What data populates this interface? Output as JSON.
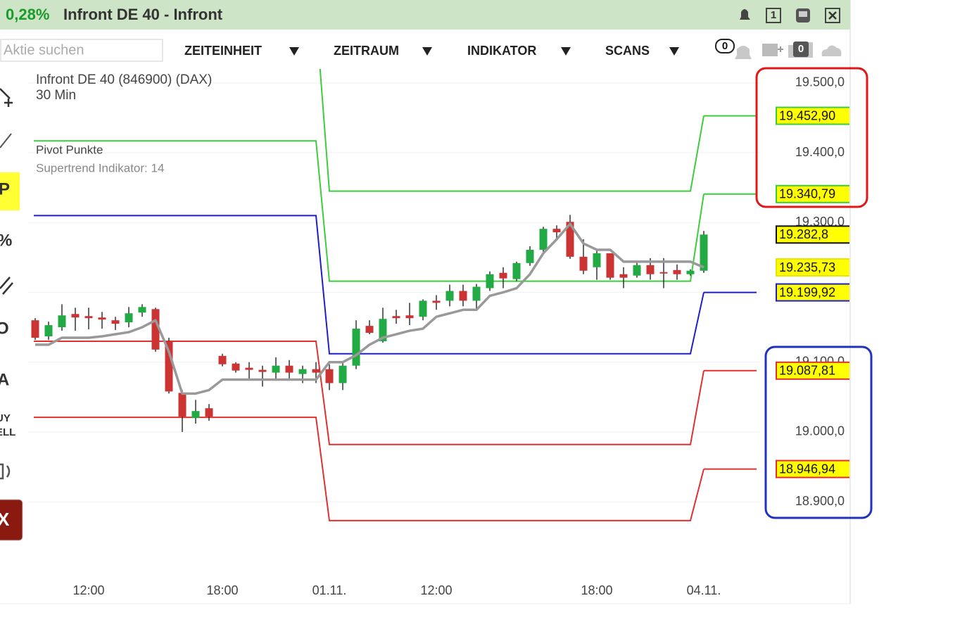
{
  "header": {
    "change": "0,28%",
    "title": "Infront DE 40 - Infront",
    "layout_button": "1"
  },
  "toolbar": {
    "search_placeholder": "Aktie suchen",
    "menus": [
      "ZEITEINHEIT",
      "ZEITRAUM",
      "INDIKATOR",
      "SCANS"
    ],
    "badges": [
      "0",
      "0"
    ]
  },
  "sidebar": {
    "tools": [
      "P",
      "%",
      "O",
      "A",
      "UY",
      "ELL",
      "X"
    ]
  },
  "chart_data": {
    "type": "candlestick",
    "title": "Infront DE 40 (846900) (DAX)",
    "subtitle": "30 Min",
    "indicators": [
      "Pivot Punkte",
      "Supertrend Indikator: 14"
    ],
    "categories": [
      null,
      null,
      null,
      null,
      "12:00",
      null,
      null,
      null,
      null,
      null,
      null,
      null,
      null,
      null,
      "18:00",
      null,
      null,
      null,
      null,
      null,
      null,
      null,
      "01.11.",
      null,
      null,
      null,
      null,
      null,
      null,
      null,
      "12:00",
      null,
      null,
      null,
      null,
      null,
      null,
      null,
      null,
      null,
      null,
      null,
      "18:00",
      null,
      null,
      null,
      null,
      null,
      null,
      null,
      "04.11."
    ],
    "open": [
      19160,
      19137,
      19150,
      19169,
      19166,
      19164,
      19160,
      19157,
      19171,
      19176,
      19130,
      19056,
      19020,
      19034,
      19109,
      19098,
      19092,
      19089,
      19085,
      19095,
      19083,
      19090,
      19090,
      19070,
      19095,
      19152,
      19130,
      19166,
      19167,
      19165,
      19188,
      19188,
      19202,
      19188,
      19206,
      19228,
      19219,
      19242,
      19261,
      19291,
      19301,
      19251,
      19236,
      19256,
      19226,
      19224,
      19239,
      19229,
      19232,
      19226,
      19231
    ],
    "high": [
      19163,
      19158,
      19183,
      19178,
      19178,
      19172,
      19165,
      19179,
      19183,
      19178,
      19135,
      19060,
      19046,
      19040,
      19112,
      19100,
      19100,
      19095,
      19107,
      19103,
      19095,
      19100,
      19097,
      19100,
      19160,
      19160,
      19178,
      19175,
      19185,
      19190,
      19196,
      19211,
      19211,
      19212,
      19230,
      19236,
      19244,
      19266,
      19294,
      19296,
      19311,
      19276,
      19261,
      19256,
      19236,
      19244,
      19249,
      19249,
      19240,
      19233,
      19288
    ],
    "low": [
      19132,
      19132,
      19145,
      19145,
      19147,
      19148,
      19146,
      19150,
      19165,
      19115,
      19055,
      19000,
      19012,
      19016,
      19094,
      19085,
      19075,
      19065,
      19075,
      19075,
      19070,
      19070,
      19060,
      19060,
      19090,
      19140,
      19128,
      19155,
      19153,
      19160,
      19175,
      19180,
      19180,
      19176,
      19202,
      19206,
      19216,
      19238,
      19258,
      19276,
      19248,
      19226,
      19218,
      19218,
      19206,
      19221,
      19218,
      19206,
      19218,
      19224,
      19228
    ],
    "close": [
      19135,
      19153,
      19167,
      19164,
      19163,
      19161,
      19155,
      19170,
      19179,
      19118,
      19058,
      19022,
      19030,
      19022,
      19097,
      19088,
      19089,
      19086,
      19095,
      19085,
      19090,
      19085,
      19070,
      19095,
      19148,
      19142,
      19162,
      19163,
      19163,
      19188,
      19185,
      19202,
      19188,
      19208,
      19226,
      19220,
      19242,
      19261,
      19291,
      19286,
      19251,
      19231,
      19256,
      19221,
      19221,
      19239,
      19226,
      19227,
      19226,
      19231,
      19282.8
    ],
    "up_color": "#22aa44",
    "down_color": "#cc3333",
    "supertrend": {
      "color": "#999999",
      "values": [
        19125,
        19125,
        19135,
        19135,
        19135,
        19137,
        19140,
        19143,
        19150,
        19160,
        19115,
        19055,
        19055,
        19060,
        19075,
        19075,
        19075,
        19075,
        19075,
        19075,
        19075,
        19075,
        19100,
        19100,
        19110,
        19125,
        19135,
        19140,
        19145,
        19148,
        19165,
        19170,
        19175,
        19175,
        19195,
        19200,
        19206,
        19226,
        19256,
        19276,
        19298,
        19270,
        19261,
        19261,
        19244,
        19244,
        19244,
        19244,
        19244,
        19244,
        19235.73
      ]
    },
    "pivots": [
      {
        "color": "#3ccc3c",
        "values": [
          19597,
          19597,
          19597,
          19597,
          19597,
          19597,
          19597,
          19597,
          19597,
          19597,
          19597,
          19597,
          19597,
          19597,
          19597,
          19597,
          19597,
          19597,
          19597,
          19597,
          19597,
          19597,
          19345,
          19345,
          19345,
          19345,
          19345,
          19345,
          19345,
          19345,
          19345,
          19345,
          19345,
          19345,
          19345,
          19345,
          19345,
          19345,
          19345,
          19345,
          19345,
          19345,
          19345,
          19345,
          19345,
          19345,
          19345,
          19345,
          19345,
          19345,
          19452.9
        ]
      },
      {
        "color": "#3ccc3c",
        "values": [
          19417,
          19417,
          19417,
          19417,
          19417,
          19417,
          19417,
          19417,
          19417,
          19417,
          19417,
          19417,
          19417,
          19417,
          19417,
          19417,
          19417,
          19417,
          19417,
          19417,
          19417,
          19417,
          19216,
          19216,
          19216,
          19216,
          19216,
          19216,
          19216,
          19216,
          19216,
          19216,
          19216,
          19216,
          19216,
          19216,
          19216,
          19216,
          19216,
          19216,
          19216,
          19216,
          19216,
          19216,
          19216,
          19216,
          19216,
          19216,
          19216,
          19216,
          19340.79
        ]
      },
      {
        "color": "#1e1ec8",
        "values": [
          19310,
          19310,
          19310,
          19310,
          19310,
          19310,
          19310,
          19310,
          19310,
          19310,
          19310,
          19310,
          19310,
          19310,
          19310,
          19310,
          19310,
          19310,
          19310,
          19310,
          19310,
          19310,
          19112,
          19112,
          19112,
          19112,
          19112,
          19112,
          19112,
          19112,
          19112,
          19112,
          19112,
          19112,
          19112,
          19112,
          19112,
          19112,
          19112,
          19112,
          19112,
          19112,
          19112,
          19112,
          19112,
          19112,
          19112,
          19112,
          19112,
          19112,
          19199.92
        ]
      },
      {
        "color": "#e03030",
        "values": [
          19130,
          19130,
          19130,
          19130,
          19130,
          19130,
          19130,
          19130,
          19130,
          19130,
          19130,
          19130,
          19130,
          19130,
          19130,
          19130,
          19130,
          19130,
          19130,
          19130,
          19130,
          19130,
          18982,
          18982,
          18982,
          18982,
          18982,
          18982,
          18982,
          18982,
          18982,
          18982,
          18982,
          18982,
          18982,
          18982,
          18982,
          18982,
          18982,
          18982,
          18982,
          18982,
          18982,
          18982,
          18982,
          18982,
          18982,
          18982,
          18982,
          18982,
          19087.81
        ]
      },
      {
        "color": "#e03030",
        "values": [
          19021,
          19021,
          19021,
          19021,
          19021,
          19021,
          19021,
          19021,
          19021,
          19021,
          19021,
          19021,
          19021,
          19021,
          19021,
          19021,
          19021,
          19021,
          19021,
          19021,
          19021,
          19021,
          18873,
          18873,
          18873,
          18873,
          18873,
          18873,
          18873,
          18873,
          18873,
          18873,
          18873,
          18873,
          18873,
          18873,
          18873,
          18873,
          18873,
          18873,
          18873,
          18873,
          18873,
          18873,
          18873,
          18873,
          18873,
          18873,
          18873,
          18873,
          18946.94
        ]
      }
    ],
    "ylim": [
      18754,
      19520
    ],
    "yticks": [
      {
        "value": 18900,
        "label": "18.900,0"
      },
      {
        "value": 19000,
        "label": "19.000,0"
      },
      {
        "value": 19100,
        "label": "19.100,0"
      },
      {
        "value": 19200,
        "label": "19.200,0"
      },
      {
        "value": 19300,
        "label": "19.300,0"
      },
      {
        "value": 19400,
        "label": "19.400,0"
      },
      {
        "value": 19500,
        "label": "19.500,0"
      }
    ],
    "grid": true,
    "price_tags": [
      {
        "value": 19452.9,
        "label": "19.452,90",
        "color": "#3ccc3c"
      },
      {
        "value": 19340.79,
        "label": "19.340,79",
        "color": "#3ccc3c"
      },
      {
        "value": 19282.8,
        "label": "19.282,8",
        "color": "#111111"
      },
      {
        "value": 19235.73,
        "label": "19.235,73",
        "color": "#e6e600"
      },
      {
        "value": 19199.92,
        "label": "19.199,92",
        "color": "#1e1ec8"
      },
      {
        "value": 19087.81,
        "label": "19.087,81",
        "color": "#e03030"
      },
      {
        "value": 18946.94,
        "label": "18.946,94",
        "color": "#e03030"
      }
    ]
  }
}
